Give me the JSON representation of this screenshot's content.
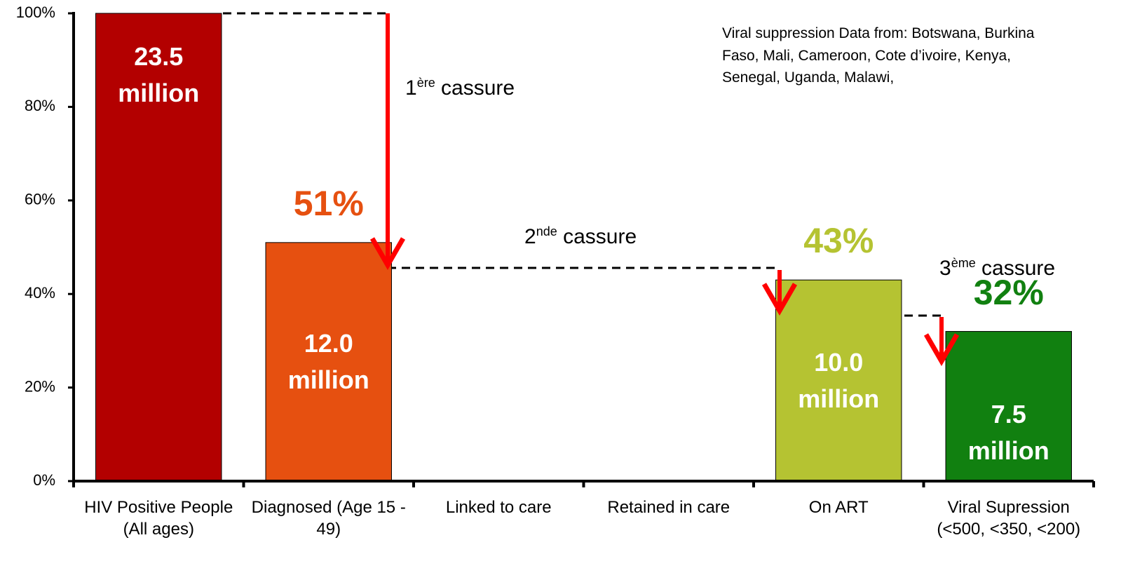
{
  "chart_data": {
    "type": "bar",
    "categories": [
      "HIV Positive People (All ages)",
      "Diagnosed (Age 15 - 49)",
      "Linked to care",
      "Retained in care",
      "On ART",
      "Viral Supression (<500, <350, <200)"
    ],
    "values": [
      100,
      51,
      null,
      null,
      43,
      32
    ],
    "value_labels": [
      null,
      "51%",
      null,
      null,
      "43%",
      "32%"
    ],
    "count_labels": [
      "23.5 million",
      "12.0 million",
      null,
      null,
      "10.0 million",
      "7.5 million"
    ],
    "colors": [
      "#b30000",
      "#e65010",
      null,
      null,
      "#b5c332",
      "#118010"
    ],
    "ylim": [
      0,
      100
    ],
    "yticks": [
      {
        "value": 0,
        "label": "0%"
      },
      {
        "value": 20,
        "label": "20%"
      },
      {
        "value": 40,
        "label": "40%"
      },
      {
        "value": 60,
        "label": "60%"
      },
      {
        "value": 80,
        "label": "80%"
      },
      {
        "value": 100,
        "label": "100%"
      }
    ],
    "annotations": [
      {
        "num": "1",
        "sup": "ère",
        "text": "cassure"
      },
      {
        "num": "2",
        "sup": "nde",
        "text": "cassure"
      },
      {
        "num": "3",
        "sup": "ème",
        "text": "cassure"
      }
    ],
    "note": "Viral suppression Data from: Botswana, Burkina Faso, Mali, Cameroon, Cote d’ivoire, Kenya, Senegal, Uganda, Malawi,"
  }
}
